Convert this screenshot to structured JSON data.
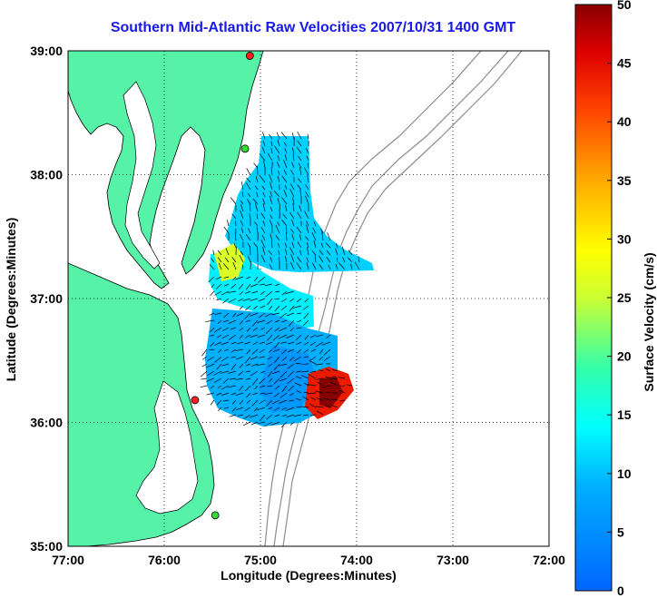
{
  "title": "Southern Mid-Atlantic Raw Velocities 2007/10/31 1400 GMT",
  "xaxis": {
    "label": "Longitude (Degrees:Minutes)",
    "ticks": [
      "77:00",
      "76:00",
      "75:00",
      "74:00",
      "73:00",
      "72:00"
    ]
  },
  "yaxis": {
    "label": "Latitude (Degrees:Minutes)",
    "ticks": [
      "39:00",
      "38:00",
      "37:00",
      "36:00",
      "35:00"
    ]
  },
  "colorbar": {
    "label": "Surface Velocity (cm/s)",
    "ticks": [
      "50",
      "45",
      "40",
      "35",
      "30",
      "25",
      "20",
      "15",
      "10",
      "5",
      "0"
    ],
    "range": [
      0,
      50
    ]
  },
  "colors": {
    "land": "#55f2a8",
    "title": "#1a1ae6",
    "isobath": "#8c8c8c",
    "station_red": "#ff2020",
    "station_green": "#33dd33"
  },
  "map_extent": {
    "lon": [
      -77,
      -72
    ],
    "lat": [
      35,
      39
    ]
  },
  "stations": [
    {
      "lon": -75.11,
      "lat": 38.96,
      "color": "red"
    },
    {
      "lon": -75.16,
      "lat": 38.21,
      "color": "green"
    },
    {
      "lon": -75.68,
      "lat": 36.18,
      "color": "red"
    },
    {
      "lon": -75.47,
      "lat": 35.25,
      "color": "green"
    }
  ]
}
